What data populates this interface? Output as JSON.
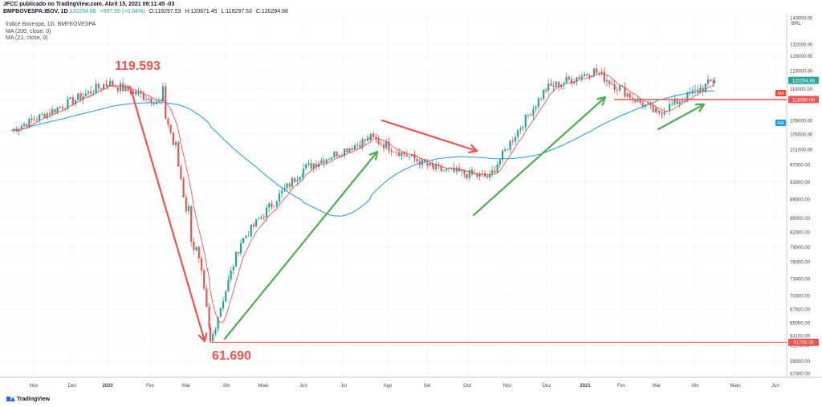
{
  "header": {
    "publisher_line": "JFCC publicado no TradingView.com, Abril 15, 2021 09:11:45 -03",
    "symbol": "BMFBOVESPA:IBOV, 1D",
    "last": "120294.68",
    "change": "+997.55 (+0.84%)",
    "open": "O:119297.53",
    "high": "H:120871.45",
    "low": "L:119297.53",
    "close": "C:120294.68"
  },
  "legend": {
    "title": "Índice Bovespa, 1D, BMFBOVESPA",
    "ma200": "MA (200, close, 0)",
    "ma21": "MA (21, close, 0)"
  },
  "footer": {
    "brand": "TradingView"
  },
  "colors": {
    "up": "#26a69a",
    "down": "#ef5350",
    "ma200": "#2196f3",
    "ma21": "#f44336",
    "red_arrow": "#ef5350",
    "green_arrow": "#4caf50",
    "grid": "#eef0f3"
  },
  "chart_data": {
    "type": "candlestick",
    "x_labels": [
      "Nov",
      "Dez",
      "2020",
      "Fev",
      "Mar",
      "Abr",
      "Maio",
      "Jun",
      "Jul",
      "Ago",
      "Set",
      "Out",
      "Nov",
      "Dez",
      "2021",
      "Fev",
      "Mar",
      "Abr",
      "Maio",
      "Jun"
    ],
    "y_ticks": [
      "140000.00",
      "132000.00",
      "128000.00",
      "123000.00",
      "118000.00",
      "115000.00",
      "109000.00",
      "105000.00",
      "101000.00",
      "97000.00",
      "93000.00",
      "89000.00",
      "85000.00",
      "82000.00",
      "79000.00",
      "76000.00",
      "73000.00",
      "70000.00",
      "67500.00",
      "65000.00",
      "63100.00",
      "61100.00",
      "59000.00",
      "57300.00"
    ],
    "y_unit": "BRL",
    "price_labels": {
      "last": "120294.68",
      "ma21": "MA",
      "ma200": "MA",
      "level_high": "115000.00",
      "level_low": "61700.00"
    },
    "annotations": {
      "peak": "119.593",
      "trough": "61.690"
    },
    "key_points": [
      {
        "x": "Nov 2019",
        "close": 106000
      },
      {
        "x": "Jan 2020",
        "close": 119593
      },
      {
        "x": "Feb 2020",
        "close": 114000
      },
      {
        "x": "Mar 2020",
        "close": 61690
      },
      {
        "x": "Abr 2020",
        "close": 80000
      },
      {
        "x": "Jun 2020",
        "close": 96000
      },
      {
        "x": "Jul 2020",
        "close": 104000
      },
      {
        "x": "Set 2020",
        "close": 96000
      },
      {
        "x": "Out 2020",
        "close": 94000
      },
      {
        "x": "Dez 2020",
        "close": 118000
      },
      {
        "x": "Jan 2021",
        "close": 123000
      },
      {
        "x": "Mar 2021",
        "close": 111000
      },
      {
        "x": "Abr 2021",
        "close": 120294.68
      }
    ]
  }
}
